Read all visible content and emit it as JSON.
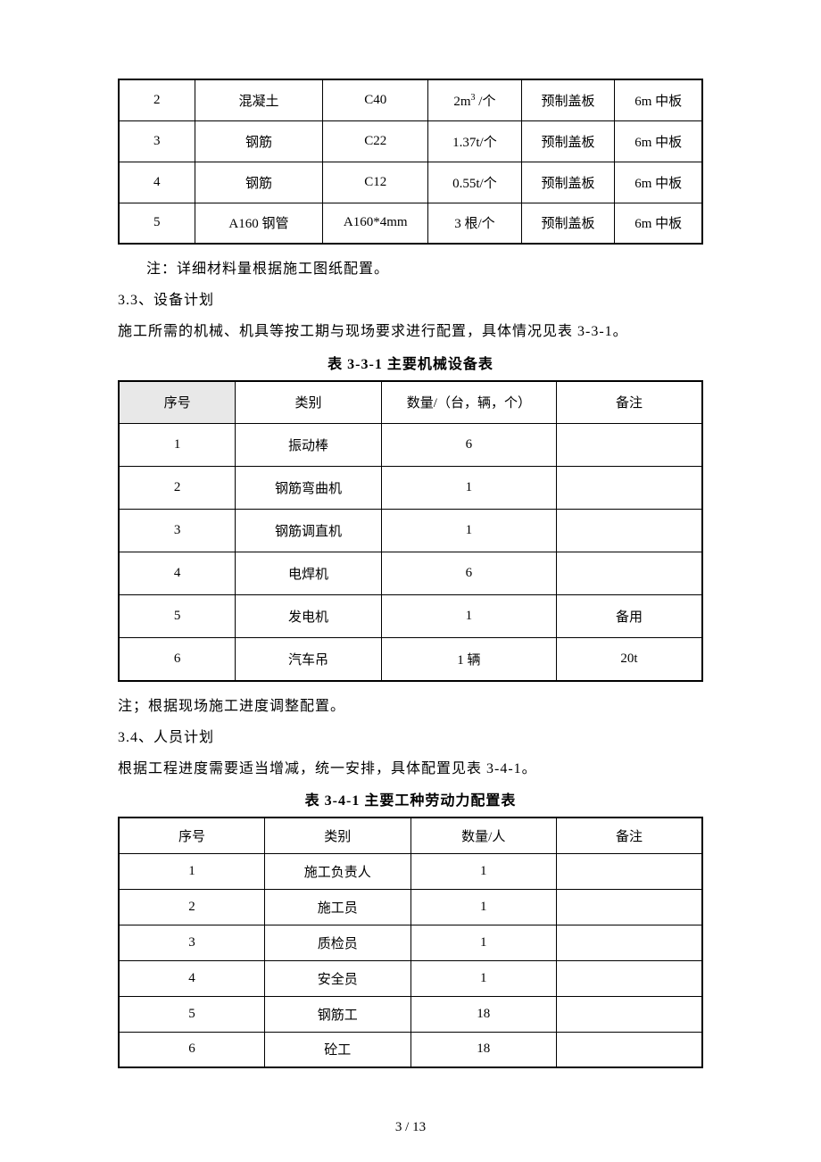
{
  "table1": {
    "rows": [
      {
        "no": "2",
        "name": "混凝土",
        "spec": "C40",
        "qty": "2m³ /个",
        "use": "预制盖板",
        "remark": "6m 中板"
      },
      {
        "no": "3",
        "name": "钢筋",
        "spec": "C22",
        "qty": "1.37t/个",
        "use": "预制盖板",
        "remark": "6m 中板"
      },
      {
        "no": "4",
        "name": "钢筋",
        "spec": "C12",
        "qty": "0.55t/个",
        "use": "预制盖板",
        "remark": "6m 中板"
      },
      {
        "no": "5",
        "name": "A160 钢管",
        "spec": "A160*4mm",
        "qty": "3 根/个",
        "use": "预制盖板",
        "remark": "6m 中板"
      }
    ]
  },
  "note1": "注：详细材料量根据施工图纸配置。",
  "sec33_title": "3.3、设备计划",
  "sec33_text": "施工所需的机械、机具等按工期与现场要求进行配置，具体情况见表 3-3-1。",
  "table2_title": "表 3-3-1 主要机械设备表",
  "table2": {
    "header": {
      "no": "序号",
      "type": "类别",
      "qty": "数量/（台，辆，个）",
      "remark": "备注"
    },
    "rows": [
      {
        "no": "1",
        "type": "振动棒",
        "qty": "6",
        "remark": ""
      },
      {
        "no": "2",
        "type": "钢筋弯曲机",
        "qty": "1",
        "remark": ""
      },
      {
        "no": "3",
        "type": "钢筋调直机",
        "qty": "1",
        "remark": ""
      },
      {
        "no": "4",
        "type": "电焊机",
        "qty": "6",
        "remark": ""
      },
      {
        "no": "5",
        "type": "发电机",
        "qty": "1",
        "remark": "备用"
      },
      {
        "no": "6",
        "type": "汽车吊",
        "qty": "1 辆",
        "remark": "20t"
      }
    ]
  },
  "note2": "注；根据现场施工进度调整配置。",
  "sec34_title": "3.4、人员计划",
  "sec34_text": "根据工程进度需要适当增减，统一安排，具体配置见表 3-4-1。",
  "table3_title": "表 3-4-1 主要工种劳动力配置表",
  "table3": {
    "header": {
      "no": "序号",
      "type": "类别",
      "qty": "数量/人",
      "remark": "备注"
    },
    "rows": [
      {
        "no": "1",
        "type": "施工负责人",
        "qty": "1",
        "remark": ""
      },
      {
        "no": "2",
        "type": "施工员",
        "qty": "1",
        "remark": ""
      },
      {
        "no": "3",
        "type": "质检员",
        "qty": "1",
        "remark": ""
      },
      {
        "no": "4",
        "type": "安全员",
        "qty": "1",
        "remark": ""
      },
      {
        "no": "5",
        "type": "钢筋工",
        "qty": "18",
        "remark": ""
      },
      {
        "no": "6",
        "type": "砼工",
        "qty": "18",
        "remark": ""
      }
    ]
  },
  "page_footer": "3 / 13"
}
